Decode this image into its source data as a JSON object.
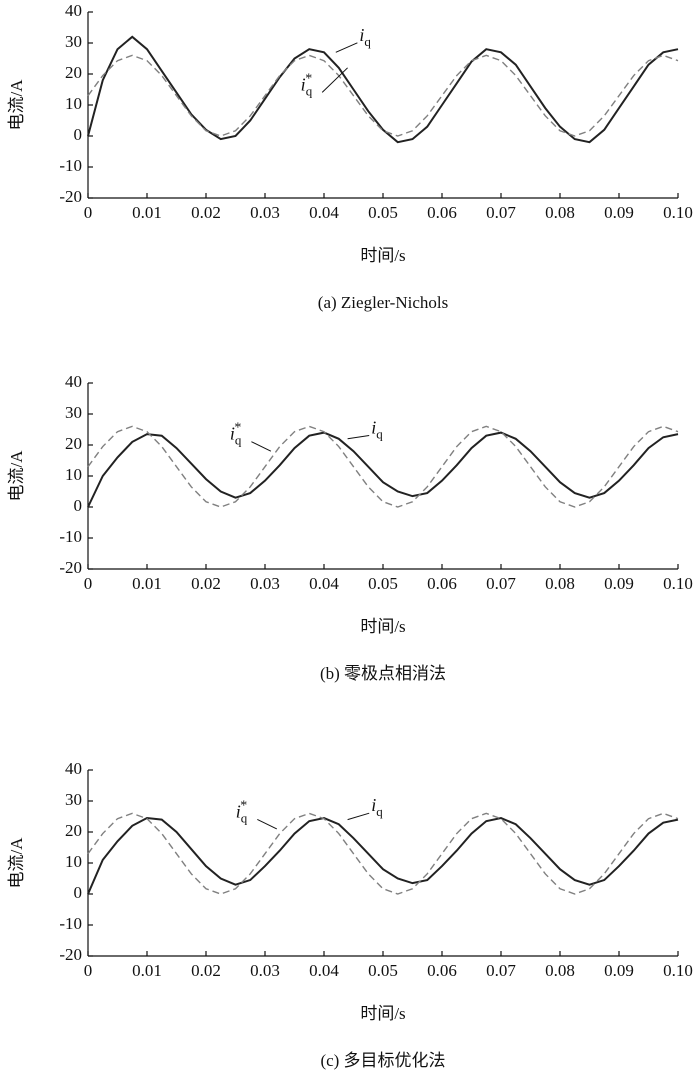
{
  "chart_data": [
    {
      "type": "line",
      "caption": "(a) Ziegler-Nichols",
      "xlabel": "时间/s",
      "ylabel": "电流/A",
      "x": [
        0,
        0.0025,
        0.005,
        0.0075,
        0.01,
        0.0125,
        0.015,
        0.0175,
        0.02,
        0.0225,
        0.025,
        0.0275,
        0.03,
        0.0325,
        0.035,
        0.0375,
        0.04,
        0.0425,
        0.045,
        0.0475,
        0.05,
        0.0525,
        0.055,
        0.0575,
        0.06,
        0.0625,
        0.065,
        0.0675,
        0.07,
        0.0725,
        0.075,
        0.0775,
        0.08,
        0.0825,
        0.085,
        0.0875,
        0.09,
        0.0925,
        0.095,
        0.0975,
        0.1
      ],
      "series": [
        {
          "label": {
            "symbol": "i",
            "subscript": "q"
          },
          "color": "#222222",
          "dashed": false,
          "values": [
            0,
            18,
            28,
            32,
            28,
            21,
            14,
            7,
            2,
            -1,
            0,
            5,
            12,
            19,
            25,
            28,
            27,
            22,
            15,
            8,
            2,
            -2,
            -1,
            3,
            10,
            17,
            24,
            28,
            27,
            23,
            16,
            9,
            3,
            -1,
            -2,
            2,
            9,
            16,
            23,
            27,
            28
          ]
        },
        {
          "label": {
            "symbol": "i",
            "subscript": "q",
            "superscript": "*"
          },
          "color": "#808080",
          "dashed": true,
          "values": [
            13,
            19.5,
            24.3,
            26,
            24.3,
            19.5,
            13,
            6.5,
            1.7,
            0,
            1.7,
            6.5,
            13,
            19.5,
            24.3,
            26,
            24.3,
            19.5,
            13,
            6.5,
            1.7,
            0,
            1.7,
            6.5,
            13,
            19.5,
            24.3,
            26,
            24.3,
            19.5,
            13,
            6.5,
            1.7,
            0,
            1.7,
            6.5,
            13,
            19.5,
            24.3,
            26,
            24.3
          ]
        }
      ],
      "xlim": [
        0,
        0.1
      ],
      "xticks": [
        0,
        0.01,
        0.02,
        0.03,
        0.04,
        0.05,
        0.06,
        0.07,
        0.08,
        0.09,
        {
          "value": 0.1,
          "label": "0.10"
        }
      ],
      "ylim": [
        -20,
        40
      ],
      "yticks": [
        -20,
        -10,
        0,
        10,
        20,
        30,
        40
      ]
    },
    {
      "type": "line",
      "caption": "(b) 零极点相消法",
      "xlabel": "时间/s",
      "ylabel": "电流/A",
      "x": [
        0,
        0.0025,
        0.005,
        0.0075,
        0.01,
        0.0125,
        0.015,
        0.0175,
        0.02,
        0.0225,
        0.025,
        0.0275,
        0.03,
        0.0325,
        0.035,
        0.0375,
        0.04,
        0.0425,
        0.045,
        0.0475,
        0.05,
        0.0525,
        0.055,
        0.0575,
        0.06,
        0.0625,
        0.065,
        0.0675,
        0.07,
        0.0725,
        0.075,
        0.0775,
        0.08,
        0.0825,
        0.085,
        0.0875,
        0.09,
        0.0925,
        0.095,
        0.0975,
        0.1
      ],
      "series": [
        {
          "label": {
            "symbol": "i",
            "subscript": "q"
          },
          "color": "#222222",
          "dashed": false,
          "values": [
            0,
            10,
            16,
            21,
            23.5,
            23,
            19,
            14,
            9,
            5,
            3,
            4.5,
            8.5,
            13.5,
            19,
            23,
            24,
            22,
            18,
            13,
            8,
            5,
            3.5,
            4.5,
            8.5,
            13.5,
            19,
            23,
            24,
            22,
            18,
            13,
            8,
            4.5,
            3,
            4.5,
            8.5,
            13.5,
            19,
            22.5,
            23.5
          ]
        },
        {
          "label": {
            "symbol": "i",
            "subscript": "q",
            "superscript": "*"
          },
          "color": "#808080",
          "dashed": true,
          "values": [
            13,
            19.5,
            24.3,
            26,
            24.3,
            19.5,
            13,
            6.5,
            1.7,
            0,
            1.7,
            6.5,
            13,
            19.5,
            24.3,
            26,
            24.3,
            19.5,
            13,
            6.5,
            1.7,
            0,
            1.7,
            6.5,
            13,
            19.5,
            24.3,
            26,
            24.3,
            19.5,
            13,
            6.5,
            1.7,
            0,
            1.7,
            6.5,
            13,
            19.5,
            24.3,
            26,
            24.3
          ]
        }
      ],
      "xlim": [
        0,
        0.1
      ],
      "xticks": [
        0,
        0.01,
        0.02,
        0.03,
        0.04,
        0.05,
        0.06,
        0.07,
        0.08,
        0.09,
        {
          "value": 0.1,
          "label": "0.10"
        }
      ],
      "ylim": [
        -20,
        40
      ],
      "yticks": [
        -20,
        -10,
        0,
        10,
        20,
        30,
        40
      ]
    },
    {
      "type": "line",
      "caption": "(c) 多目标优化法",
      "xlabel": "时间/s",
      "ylabel": "电流/A",
      "x": [
        0,
        0.0025,
        0.005,
        0.0075,
        0.01,
        0.0125,
        0.015,
        0.0175,
        0.02,
        0.0225,
        0.025,
        0.0275,
        0.03,
        0.0325,
        0.035,
        0.0375,
        0.04,
        0.0425,
        0.045,
        0.0475,
        0.05,
        0.0525,
        0.055,
        0.0575,
        0.06,
        0.0625,
        0.065,
        0.0675,
        0.07,
        0.0725,
        0.075,
        0.0775,
        0.08,
        0.0825,
        0.085,
        0.0875,
        0.09,
        0.0925,
        0.095,
        0.0975,
        0.1
      ],
      "series": [
        {
          "label": {
            "symbol": "i",
            "subscript": "q"
          },
          "color": "#222222",
          "dashed": false,
          "values": [
            0,
            11,
            17,
            22,
            24.5,
            24,
            20,
            14.5,
            9,
            5,
            3,
            4.5,
            9,
            14,
            19.5,
            23.5,
            24.5,
            22.5,
            18,
            13,
            8,
            5,
            3.5,
            4.5,
            9,
            14,
            19.5,
            23.5,
            24.5,
            22.5,
            18,
            13,
            8,
            4.5,
            3,
            4.5,
            9,
            14,
            19.5,
            23,
            24
          ]
        },
        {
          "label": {
            "symbol": "i",
            "subscript": "q",
            "superscript": "*"
          },
          "color": "#808080",
          "dashed": true,
          "values": [
            13,
            19.5,
            24.3,
            26,
            24.3,
            19.5,
            13,
            6.5,
            1.7,
            0,
            1.7,
            6.5,
            13,
            19.5,
            24.3,
            26,
            24.3,
            19.5,
            13,
            6.5,
            1.7,
            0,
            1.7,
            6.5,
            13,
            19.5,
            24.3,
            26,
            24.3,
            19.5,
            13,
            6.5,
            1.7,
            0,
            1.7,
            6.5,
            13,
            19.5,
            24.3,
            26,
            24.3
          ]
        }
      ],
      "xlim": [
        0,
        0.1
      ],
      "xticks": [
        0,
        0.01,
        0.02,
        0.03,
        0.04,
        0.05,
        0.06,
        0.07,
        0.08,
        0.09,
        {
          "value": 0.1,
          "label": "0.10"
        }
      ],
      "ylim": [
        -20,
        40
      ],
      "yticks": [
        -20,
        -10,
        0,
        10,
        20,
        30,
        40
      ]
    }
  ]
}
